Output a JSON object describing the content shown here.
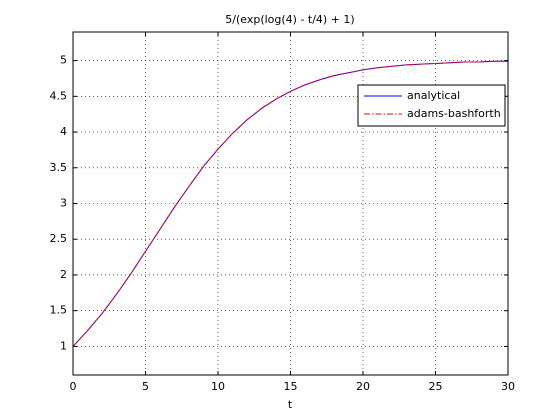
{
  "chart_data": {
    "type": "line",
    "title": "5/(exp(log(4) - t/4) + 1)",
    "xlabel": "t",
    "x": [
      0,
      1,
      2,
      3,
      4,
      5,
      6,
      7,
      8,
      9,
      10,
      11,
      12,
      13,
      14,
      15,
      16,
      17,
      18,
      19,
      20,
      21,
      22,
      23,
      24,
      25,
      26,
      27,
      28,
      29,
      30
    ],
    "series": [
      {
        "name": "analytical",
        "color": "#0000ff",
        "dash": "solid",
        "values": [
          1,
          1.22,
          1.46,
          1.73,
          2.02,
          2.33,
          2.64,
          2.95,
          3.24,
          3.52,
          3.76,
          3.98,
          4.17,
          4.33,
          4.46,
          4.57,
          4.66,
          4.73,
          4.79,
          4.83,
          4.87,
          4.9,
          4.92,
          4.94,
          4.95,
          4.96,
          4.97,
          4.98,
          4.98,
          4.99,
          4.99
        ]
      },
      {
        "name": "adams-bashforth",
        "color": "#ff0000",
        "dash": "dashdot",
        "values": [
          1,
          1.22,
          1.46,
          1.73,
          2.02,
          2.33,
          2.64,
          2.95,
          3.24,
          3.52,
          3.76,
          3.98,
          4.17,
          4.33,
          4.46,
          4.57,
          4.66,
          4.73,
          4.79,
          4.83,
          4.87,
          4.9,
          4.92,
          4.94,
          4.95,
          4.96,
          4.97,
          4.98,
          4.98,
          4.99,
          4.99
        ]
      }
    ],
    "xlim": [
      0,
      30
    ],
    "xticks": [
      0,
      5,
      10,
      15,
      20,
      25,
      30
    ],
    "ylim": [
      0.6,
      5.4
    ],
    "yticks": [
      1,
      1.5,
      2,
      2.5,
      3,
      3.5,
      4,
      4.5,
      5
    ],
    "grid": true,
    "legend": "northeast"
  }
}
